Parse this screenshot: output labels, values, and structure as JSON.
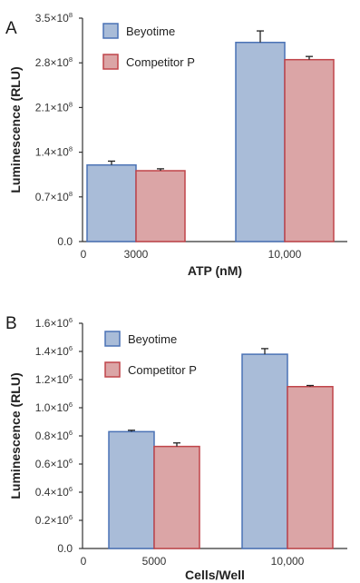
{
  "chart_data": [
    {
      "panel": "A",
      "type": "bar",
      "categories": [
        "3000",
        "10,000"
      ],
      "series": [
        {
          "name": "Beyotime",
          "values": [
            120000000,
            312000000
          ],
          "errors": [
            6000000,
            18000000
          ]
        },
        {
          "name": "Competitor P",
          "values": [
            111000000,
            285000000
          ],
          "errors": [
            3000000,
            5000000
          ]
        }
      ],
      "xlabel": "ATP (nM)",
      "ylabel": "Luminescence (RLU)",
      "ylim": [
        0,
        350000000
      ],
      "yticks": [
        {
          "value": 0,
          "label": "0.0",
          "exp": ""
        },
        {
          "value": 70000000,
          "label": "0.7×10",
          "exp": "8"
        },
        {
          "value": 140000000,
          "label": "1.4×10",
          "exp": "8"
        },
        {
          "value": 210000000,
          "label": "2.1×10",
          "exp": "8"
        },
        {
          "value": 280000000,
          "label": "2.8×10",
          "exp": "8"
        },
        {
          "value": 350000000,
          "label": "3.5×10",
          "exp": "8"
        }
      ],
      "x_origin_label": "0",
      "legend_position": "top-left",
      "grid": false
    },
    {
      "panel": "B",
      "type": "bar",
      "categories": [
        "5000",
        "10,000"
      ],
      "series": [
        {
          "name": "Beyotime",
          "values": [
            830000,
            1380000
          ],
          "errors": [
            10000,
            40000
          ]
        },
        {
          "name": "Competitor P",
          "values": [
            725000,
            1150000
          ],
          "errors": [
            25000,
            8000
          ]
        }
      ],
      "xlabel": "Cells/Well",
      "ylabel": "Luminescence (RLU)",
      "ylim": [
        0,
        1600000
      ],
      "yticks": [
        {
          "value": 0,
          "label": "0.0",
          "exp": ""
        },
        {
          "value": 200000,
          "label": "0.2×10",
          "exp": "6"
        },
        {
          "value": 400000,
          "label": "0.4×10",
          "exp": "6"
        },
        {
          "value": 600000,
          "label": "0.6×10",
          "exp": "6"
        },
        {
          "value": 800000,
          "label": "0.8×10",
          "exp": "6"
        },
        {
          "value": 1000000,
          "label": "1.0×10",
          "exp": "6"
        },
        {
          "value": 1200000,
          "label": "1.2×10",
          "exp": "6"
        },
        {
          "value": 1400000,
          "label": "1.4×10",
          "exp": "6"
        },
        {
          "value": 1600000,
          "label": "1.6×10",
          "exp": "6"
        }
      ],
      "x_origin_label": "0",
      "legend_position": "top-left",
      "grid": false
    }
  ],
  "colors": {
    "Beyotime": {
      "fill": "#a9bcd8",
      "stroke": "#4a72b5"
    },
    "Competitor P": {
      "fill": "#dba5a6",
      "stroke": "#c0454a"
    },
    "axis": "#333333",
    "error_bar": "#222222"
  }
}
